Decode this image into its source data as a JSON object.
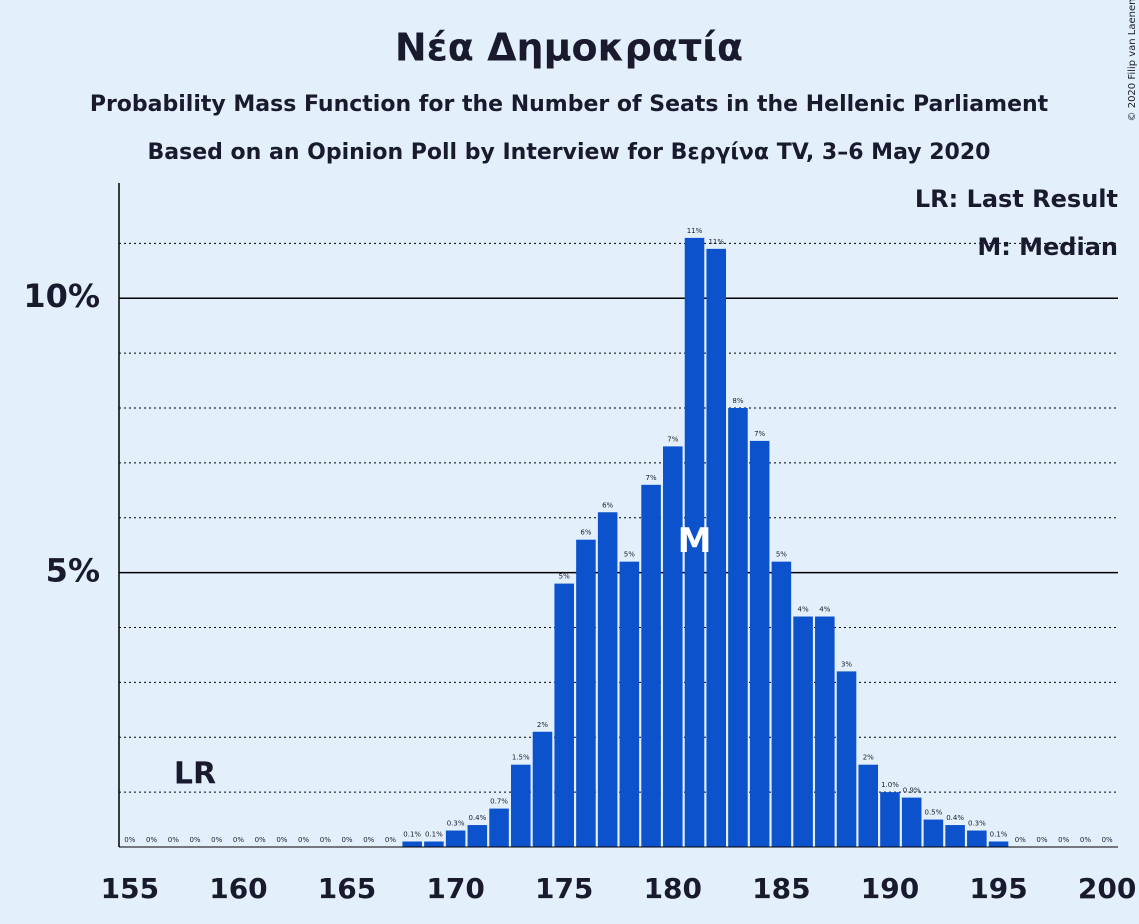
{
  "chart_data": {
    "type": "bar",
    "title": "Νέα Δημοκρατία",
    "subtitle": "Probability Mass Function for the Number of Seats in the Hellenic Parliament",
    "subtitle2": "Based on an Opinion Poll by Interview for Βεργίνα TV, 3–6 May 2020",
    "copyright": "© 2020 Filip van Laenen",
    "legend": [
      "LR: Last Result",
      "M: Median"
    ],
    "legend_position": "upper right",
    "color": "#0b52cc",
    "x": [
      155,
      156,
      157,
      158,
      159,
      160,
      161,
      162,
      163,
      164,
      165,
      166,
      167,
      168,
      169,
      170,
      171,
      172,
      173,
      174,
      175,
      176,
      177,
      178,
      179,
      180,
      181,
      182,
      183,
      184,
      185,
      186,
      187,
      188,
      189,
      190,
      191,
      192,
      193,
      194,
      195,
      196,
      197,
      198,
      199,
      200
    ],
    "values": [
      0,
      0,
      0,
      0,
      0,
      0,
      0,
      0,
      0,
      0,
      0,
      0,
      0,
      0.1,
      0.1,
      0.3,
      0.4,
      0.7,
      1.5,
      2.1,
      4.8,
      5.6,
      6.1,
      5.2,
      6.6,
      7.3,
      11.1,
      10.9,
      8.0,
      7.4,
      5.2,
      4.2,
      4.2,
      3.2,
      1.5,
      1.0,
      0.9,
      0.5,
      0.4,
      0.3,
      0.1,
      0,
      0,
      0,
      0,
      0
    ],
    "value_labels": [
      "0%",
      "0%",
      "0%",
      "0%",
      "0%",
      "0%",
      "0%",
      "0%",
      "0%",
      "0%",
      "0%",
      "0%",
      "0%",
      "0.1%",
      "0.1%",
      "0.3%",
      "0.4%",
      "0.7%",
      "1.5%",
      "2%",
      "5%",
      "6%",
      "6%",
      "5%",
      "7%",
      "7%",
      "11%",
      "11%",
      "8%",
      "7%",
      "5%",
      "4%",
      "4%",
      "3%",
      "2%",
      "1.0%",
      "0.9%",
      "0.5%",
      "0.4%",
      "0.3%",
      "0.1%",
      "0%",
      "0%",
      "0%",
      "0%",
      "0%"
    ],
    "markers": [
      {
        "label": "LR",
        "x": 158
      },
      {
        "label": "M",
        "x": 181
      }
    ],
    "xlim": [
      154.5,
      200.5
    ],
    "xticks": [
      155,
      160,
      165,
      170,
      175,
      180,
      185,
      190,
      195,
      200
    ],
    "ylim": [
      0,
      12.1
    ],
    "yticks": [
      {
        "value": 5,
        "label": "5%"
      },
      {
        "value": 10,
        "label": "10%"
      }
    ],
    "minor_grid": [
      1,
      2,
      3,
      4,
      6,
      7,
      8,
      9,
      11
    ],
    "grid": true
  }
}
